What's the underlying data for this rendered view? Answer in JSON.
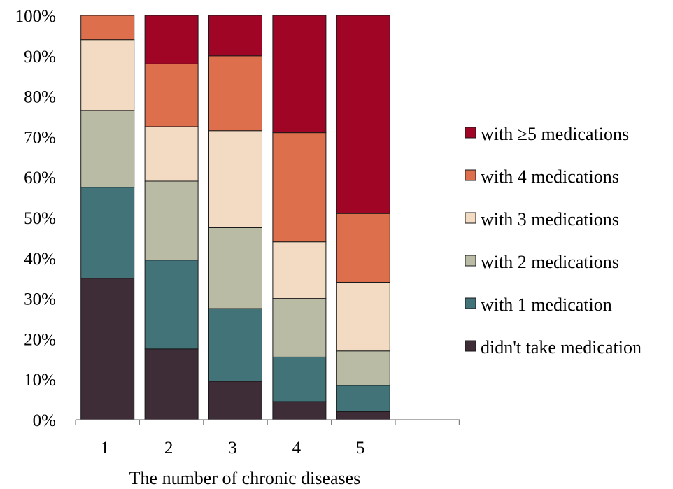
{
  "chart_data": {
    "type": "bar",
    "stacked": true,
    "percent": true,
    "xlabel": "The  number of chronic diseases",
    "ylabel": "",
    "ylim": [
      0,
      100
    ],
    "yticks": [
      "0%",
      "10%",
      "20%",
      "30%",
      "40%",
      "50%",
      "60%",
      "70%",
      "80%",
      "90%",
      "100%"
    ],
    "categories": [
      "1",
      "2",
      "3",
      "4",
      "5"
    ],
    "legend_position": "right",
    "series": [
      {
        "name": "didn't take medication",
        "color": "#3e2c37",
        "values": [
          35,
          17.5,
          9.5,
          4.5,
          2
        ]
      },
      {
        "name": "with 1 medication",
        "color": "#417378",
        "values": [
          22.5,
          22,
          18,
          11,
          6.5
        ]
      },
      {
        "name": "with 2 medications",
        "color": "#b9bba5",
        "values": [
          19,
          19.5,
          20,
          14.5,
          8.5
        ]
      },
      {
        "name": "with 3 medications",
        "color": "#f2dbc2",
        "values": [
          17.5,
          13.5,
          24,
          14,
          17
        ]
      },
      {
        "name": "with 4 medications",
        "color": "#dd6f4c",
        "values": [
          6,
          15.5,
          18.5,
          27,
          17
        ]
      },
      {
        "name": "with ≥5 medications",
        "color": "#a00525",
        "values": [
          0,
          12,
          10,
          29,
          49
        ]
      }
    ]
  }
}
